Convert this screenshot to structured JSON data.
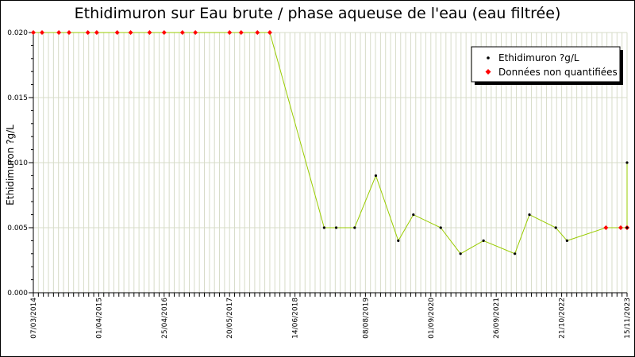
{
  "chart_data": {
    "type": "line",
    "title": "Ethidimuron sur Eau brute / phase aqueuse de l'eau (eau filtrée)",
    "ylabel": "Ethidimuron ?g/L",
    "xlabel": "",
    "ylim": [
      0,
      0.02
    ],
    "y_ticks": [
      "0.000",
      "0.005",
      "0.010",
      "0.015",
      "0.020"
    ],
    "x_range": [
      "2014-03-07",
      "2023-11-15"
    ],
    "x_ticks": [
      {
        "date": "2014-03-07",
        "label": "07/03/2014"
      },
      {
        "date": "2015-04-01",
        "label": "01/04/2015"
      },
      {
        "date": "2016-04-25",
        "label": "25/04/2016"
      },
      {
        "date": "2017-05-20",
        "label": "20/05/2017"
      },
      {
        "date": "2018-06-14",
        "label": "14/06/2018"
      },
      {
        "date": "2019-08-08",
        "label": "08/08/2019"
      },
      {
        "date": "2020-09-01",
        "label": "01/09/2020"
      },
      {
        "date": "2021-09-26",
        "label": "26/09/2021"
      },
      {
        "date": "2022-10-21",
        "label": "21/10/2022"
      },
      {
        "date": "2023-11-15",
        "label": "15/11/2023"
      }
    ],
    "grid": true,
    "legend_position": "top-right",
    "series": [
      {
        "name": "Ethidimuron ?g/L",
        "line_color": "#99cc00",
        "marker_color": "#000000",
        "unquantified_marker_color": "#ff0000",
        "points": [
          {
            "date": "2014-03-07",
            "value": 0.02,
            "unquantified": true
          },
          {
            "date": "2014-04-28",
            "value": 0.02,
            "unquantified": true
          },
          {
            "date": "2014-08-06",
            "value": 0.02,
            "unquantified": true
          },
          {
            "date": "2014-10-06",
            "value": 0.02,
            "unquantified": true
          },
          {
            "date": "2015-01-26",
            "value": 0.02,
            "unquantified": true
          },
          {
            "date": "2015-03-20",
            "value": 0.02,
            "unquantified": true
          },
          {
            "date": "2015-07-20",
            "value": 0.02,
            "unquantified": true
          },
          {
            "date": "2015-10-08",
            "value": 0.02,
            "unquantified": true
          },
          {
            "date": "2016-01-29",
            "value": 0.02,
            "unquantified": true
          },
          {
            "date": "2016-04-25",
            "value": 0.02,
            "unquantified": true
          },
          {
            "date": "2016-08-12",
            "value": 0.02,
            "unquantified": true
          },
          {
            "date": "2016-10-28",
            "value": 0.02,
            "unquantified": true
          },
          {
            "date": "2017-05-20",
            "value": 0.02,
            "unquantified": true
          },
          {
            "date": "2017-07-28",
            "value": 0.02,
            "unquantified": true
          },
          {
            "date": "2017-11-02",
            "value": 0.02,
            "unquantified": true
          },
          {
            "date": "2018-01-15",
            "value": 0.02,
            "unquantified": true
          },
          {
            "date": "2018-12-05",
            "value": 0.005,
            "unquantified": false
          },
          {
            "date": "2019-02-15",
            "value": 0.005,
            "unquantified": false
          },
          {
            "date": "2019-06-05",
            "value": 0.005,
            "unquantified": false
          },
          {
            "date": "2019-10-09",
            "value": 0.009,
            "unquantified": false
          },
          {
            "date": "2020-02-20",
            "value": 0.004,
            "unquantified": false
          },
          {
            "date": "2020-05-20",
            "value": 0.006,
            "unquantified": false
          },
          {
            "date": "2020-10-30",
            "value": 0.005,
            "unquantified": false
          },
          {
            "date": "2021-02-25",
            "value": 0.003,
            "unquantified": false
          },
          {
            "date": "2021-07-12",
            "value": 0.004,
            "unquantified": false
          },
          {
            "date": "2022-01-15",
            "value": 0.003,
            "unquantified": false
          },
          {
            "date": "2022-04-12",
            "value": 0.006,
            "unquantified": false
          },
          {
            "date": "2022-09-16",
            "value": 0.005,
            "unquantified": false
          },
          {
            "date": "2022-11-22",
            "value": 0.004,
            "unquantified": false
          },
          {
            "date": "2023-07-12",
            "value": 0.005,
            "unquantified": true
          },
          {
            "date": "2023-10-08",
            "value": 0.005,
            "unquantified": true
          },
          {
            "date": "2024-05-14",
            "value": 0.005,
            "unquantified": true
          },
          {
            "date": "2024-08-14",
            "value": 0.01,
            "unquantified": false
          },
          {
            "date": "2024-08-30",
            "value": 0.005,
            "unquantified": true
          },
          {
            "date": "2024-10-31",
            "value": 0.005,
            "unquantified": false
          }
        ]
      }
    ],
    "legend": [
      {
        "label": "Ethidimuron ?g/L",
        "marker_color": "#000000"
      },
      {
        "label": "Données non quantifiées",
        "marker_color": "#ff0000"
      }
    ]
  }
}
